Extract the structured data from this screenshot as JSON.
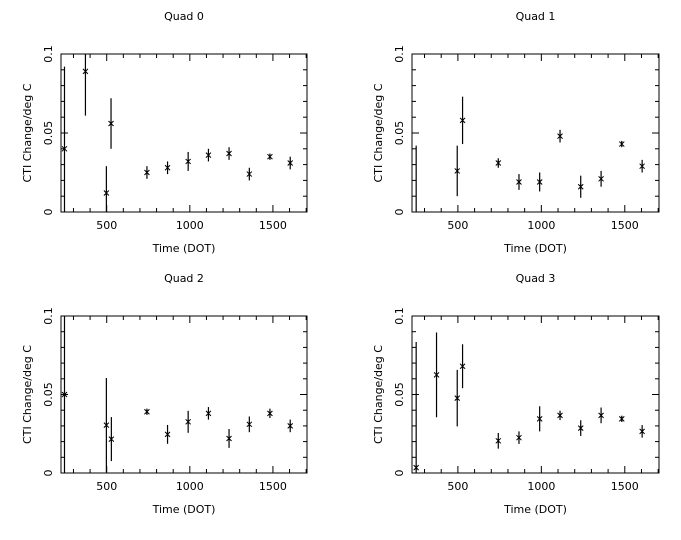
{
  "chart_data": [
    {
      "type": "scatter",
      "title": "Quad 0",
      "xlabel": "Time (DOT)",
      "ylabel": "CTI Change/deg C",
      "xlim": [
        225,
        1705
      ],
      "ylim": [
        0,
        0.1
      ],
      "xticks": [
        500,
        1000,
        1500
      ],
      "xtick_labels": [
        "500",
        "1000",
        "1500"
      ],
      "yticks": [
        0,
        0.05,
        0.1
      ],
      "ytick_labels": [
        "0",
        "0.05",
        "0.1"
      ],
      "grid": false,
      "points": [
        {
          "x": 246,
          "y": 0.04,
          "err": 0.052
        },
        {
          "x": 372,
          "y": 0.089,
          "err": 0.028
        },
        {
          "x": 498,
          "y": 0.012,
          "err": 0.017
        },
        {
          "x": 526,
          "y": 0.056,
          "err": 0.016
        },
        {
          "x": 742,
          "y": 0.025,
          "err": 0.004
        },
        {
          "x": 866,
          "y": 0.028,
          "err": 0.004
        },
        {
          "x": 990,
          "y": 0.032,
          "err": 0.006
        },
        {
          "x": 1112,
          "y": 0.036,
          "err": 0.004
        },
        {
          "x": 1236,
          "y": 0.037,
          "err": 0.004
        },
        {
          "x": 1358,
          "y": 0.024,
          "err": 0.004
        },
        {
          "x": 1482,
          "y": 0.035,
          "err": 0.002
        },
        {
          "x": 1604,
          "y": 0.031,
          "err": 0.004
        }
      ]
    },
    {
      "type": "scatter",
      "title": "Quad 1",
      "xlabel": "Time (DOT)",
      "ylabel": "CTI Change/deg C",
      "xlim": [
        225,
        1705
      ],
      "ylim": [
        0,
        0.1
      ],
      "xticks": [
        500,
        1000,
        1500
      ],
      "xtick_labels": [
        "500",
        "1000",
        "1500"
      ],
      "yticks": [
        0,
        0.05,
        0.1
      ],
      "ytick_labels": [
        "0",
        "0.05",
        "0.1"
      ],
      "grid": false,
      "points": [
        {
          "x": 250,
          "y": -0.002,
          "err": 0.044
        },
        {
          "x": 496,
          "y": 0.026,
          "err": 0.016
        },
        {
          "x": 528,
          "y": 0.058,
          "err": 0.015
        },
        {
          "x": 742,
          "y": 0.031,
          "err": 0.003
        },
        {
          "x": 866,
          "y": 0.019,
          "err": 0.005
        },
        {
          "x": 990,
          "y": 0.019,
          "err": 0.006
        },
        {
          "x": 1112,
          "y": 0.048,
          "err": 0.004
        },
        {
          "x": 1236,
          "y": 0.016,
          "err": 0.007
        },
        {
          "x": 1358,
          "y": 0.021,
          "err": 0.005
        },
        {
          "x": 1482,
          "y": 0.043,
          "err": 0.002
        },
        {
          "x": 1604,
          "y": 0.029,
          "err": 0.004
        }
      ]
    },
    {
      "type": "scatter",
      "title": "Quad 2",
      "xlabel": "Time (DOT)",
      "ylabel": "CTI Change/deg C",
      "xlim": [
        225,
        1705
      ],
      "ylim": [
        0,
        0.1
      ],
      "xticks": [
        500,
        1000,
        1500
      ],
      "xtick_labels": [
        "500",
        "1000",
        "1500"
      ],
      "yticks": [
        0,
        0.05,
        0.1
      ],
      "ytick_labels": [
        "0",
        "0.05",
        "0.1"
      ],
      "grid": false,
      "points": [
        {
          "x": 246,
          "y": 0.05,
          "err": 0.07
        },
        {
          "x": 498,
          "y": 0.0305,
          "err": 0.03
        },
        {
          "x": 528,
          "y": 0.0216,
          "err": 0.014
        },
        {
          "x": 742,
          "y": 0.039,
          "err": 0.002
        },
        {
          "x": 866,
          "y": 0.0246,
          "err": 0.006
        },
        {
          "x": 990,
          "y": 0.0326,
          "err": 0.007
        },
        {
          "x": 1112,
          "y": 0.038,
          "err": 0.004
        },
        {
          "x": 1236,
          "y": 0.022,
          "err": 0.006
        },
        {
          "x": 1358,
          "y": 0.031,
          "err": 0.005
        },
        {
          "x": 1482,
          "y": 0.038,
          "err": 0.003
        },
        {
          "x": 1604,
          "y": 0.03,
          "err": 0.004
        }
      ]
    },
    {
      "type": "scatter",
      "title": "Quad 3",
      "xlabel": "Time (DOT)",
      "ylabel": "CTI Change/deg C",
      "xlim": [
        225,
        1705
      ],
      "ylim": [
        0,
        0.1
      ],
      "xticks": [
        500,
        1000,
        1500
      ],
      "xtick_labels": [
        "500",
        "1000",
        "1500"
      ],
      "yticks": [
        0,
        0.05,
        0.1
      ],
      "ytick_labels": [
        "0",
        "0.05",
        "0.1"
      ],
      "grid": false,
      "points": [
        {
          "x": 250,
          "y": 0.0034,
          "err": 0.08
        },
        {
          "x": 372,
          "y": 0.0625,
          "err": 0.027
        },
        {
          "x": 496,
          "y": 0.0477,
          "err": 0.018
        },
        {
          "x": 528,
          "y": 0.068,
          "err": 0.014
        },
        {
          "x": 742,
          "y": 0.0205,
          "err": 0.005
        },
        {
          "x": 866,
          "y": 0.0225,
          "err": 0.004
        },
        {
          "x": 990,
          "y": 0.0345,
          "err": 0.008
        },
        {
          "x": 1112,
          "y": 0.0367,
          "err": 0.003
        },
        {
          "x": 1236,
          "y": 0.0286,
          "err": 0.005
        },
        {
          "x": 1358,
          "y": 0.0367,
          "err": 0.005
        },
        {
          "x": 1482,
          "y": 0.0345,
          "err": 0.002
        },
        {
          "x": 1604,
          "y": 0.0265,
          "err": 0.004
        }
      ]
    }
  ]
}
